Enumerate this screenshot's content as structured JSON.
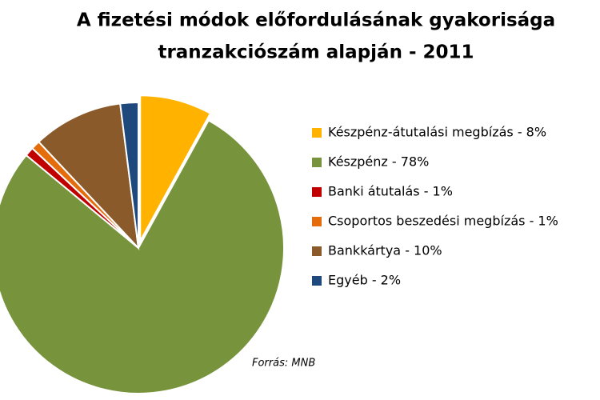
{
  "chart_data": {
    "type": "pie",
    "title": [
      "A fizetési módok előfordulásának gyakorisága",
      "tranzakciószám alapján - 2011"
    ],
    "categories": [
      "Készpénz-átutalási megbízás - 8%",
      "Készpénz - 78%",
      "Banki átutalás - 1%",
      "Csoportos beszedési megbízás - 1%",
      "Bankkártya - 10%",
      "Egyéb - 2%"
    ],
    "values": [
      8,
      78,
      1,
      1,
      10,
      2
    ],
    "colors": [
      "#ffb300",
      "#77933c",
      "#c00000",
      "#e46c0a",
      "#8b5a2b",
      "#1f497d"
    ],
    "source": "Forrás: MNB"
  }
}
